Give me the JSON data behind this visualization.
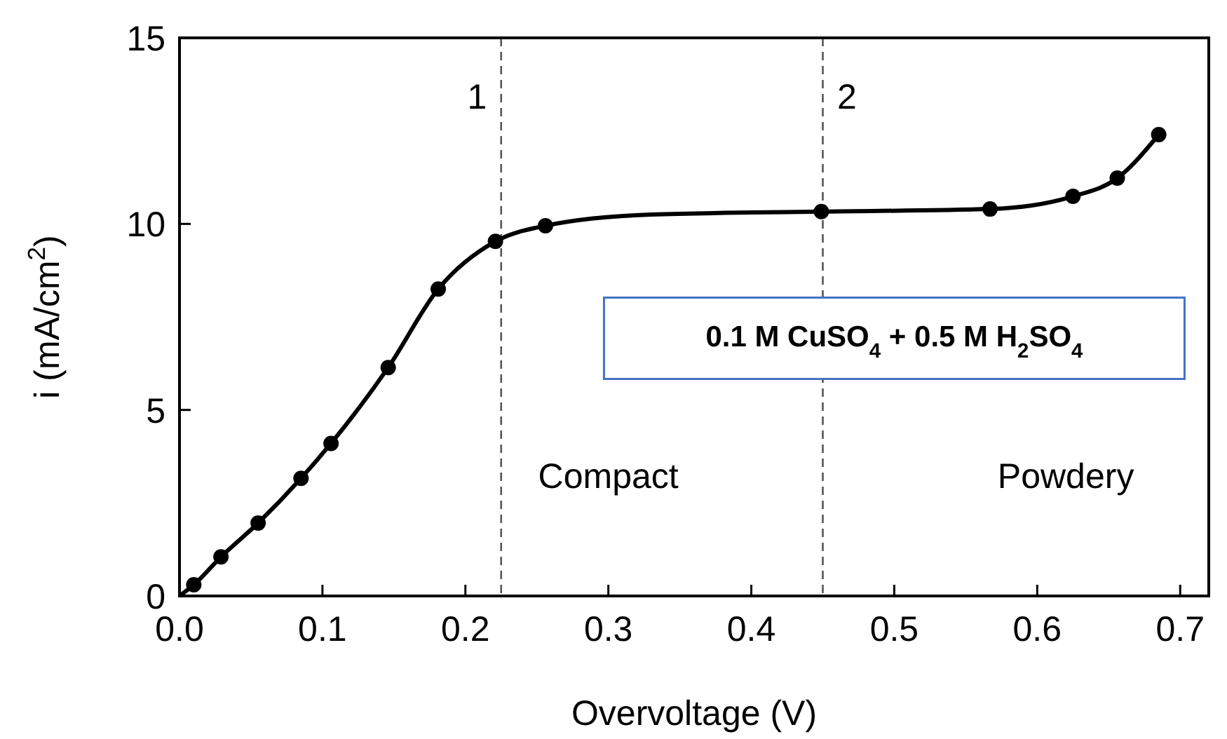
{
  "chart_data": {
    "type": "line",
    "xlabel": "Overvoltage (V)",
    "ylabel": "i (mA/cm$^{2}$)",
    "xlim": [
      0,
      0.72
    ],
    "ylim": [
      0,
      15
    ],
    "xticks": [
      {
        "value": 0,
        "label": "0.0"
      },
      {
        "value": 0.1,
        "label": "0.1"
      },
      {
        "value": 0.2,
        "label": "0.2"
      },
      {
        "value": 0.3,
        "label": "0.3"
      },
      {
        "value": 0.4,
        "label": "0.4"
      },
      {
        "value": 0.5,
        "label": "0.5"
      },
      {
        "value": 0.6,
        "label": "0.6"
      },
      {
        "value": 0.7,
        "label": "0.7"
      }
    ],
    "yticks": [
      0,
      5,
      10,
      15
    ],
    "grid": false,
    "series": [
      {
        "color": "#000000",
        "marker": "none",
        "x": [
          0,
          0.01,
          0.029,
          0.055,
          0.085,
          0.106,
          0.146,
          0.181,
          0.221,
          0.256,
          0.33,
          0.449,
          0.567,
          0.625,
          0.656,
          0.685
        ],
        "values": [
          0,
          0.3,
          1.05,
          1.96,
          3.16,
          4.1,
          6.14,
          8.25,
          9.53,
          9.95,
          10.25,
          10.33,
          10.4,
          10.74,
          11.23,
          12.4
        ]
      },
      {
        "type": "scatter",
        "color": "#000000",
        "marker": "circle",
        "x": [
          0.01,
          0.029,
          0.055,
          0.085,
          0.106,
          0.146,
          0.181,
          0.221,
          0.256,
          0.449,
          0.567,
          0.625,
          0.656,
          0.685
        ],
        "values": [
          0.3,
          1.05,
          1.96,
          3.16,
          4.1,
          6.14,
          8.25,
          9.53,
          9.95,
          10.33,
          10.4,
          10.74,
          11.23,
          12.4
        ]
      }
    ],
    "ref_lines": [
      {
        "axis": "x",
        "value": 0.225,
        "line_style": "dashed",
        "color": "#555555"
      },
      {
        "axis": "x",
        "value": 0.45,
        "line_style": "dashed",
        "color": "#555555"
      }
    ],
    "annotations": [
      "1",
      "2",
      "Compact",
      "Powdery",
      "0.1 M CuSO$_{4}$ + 0.5 M H$_{2}$SO$_{4}$"
    ]
  }
}
